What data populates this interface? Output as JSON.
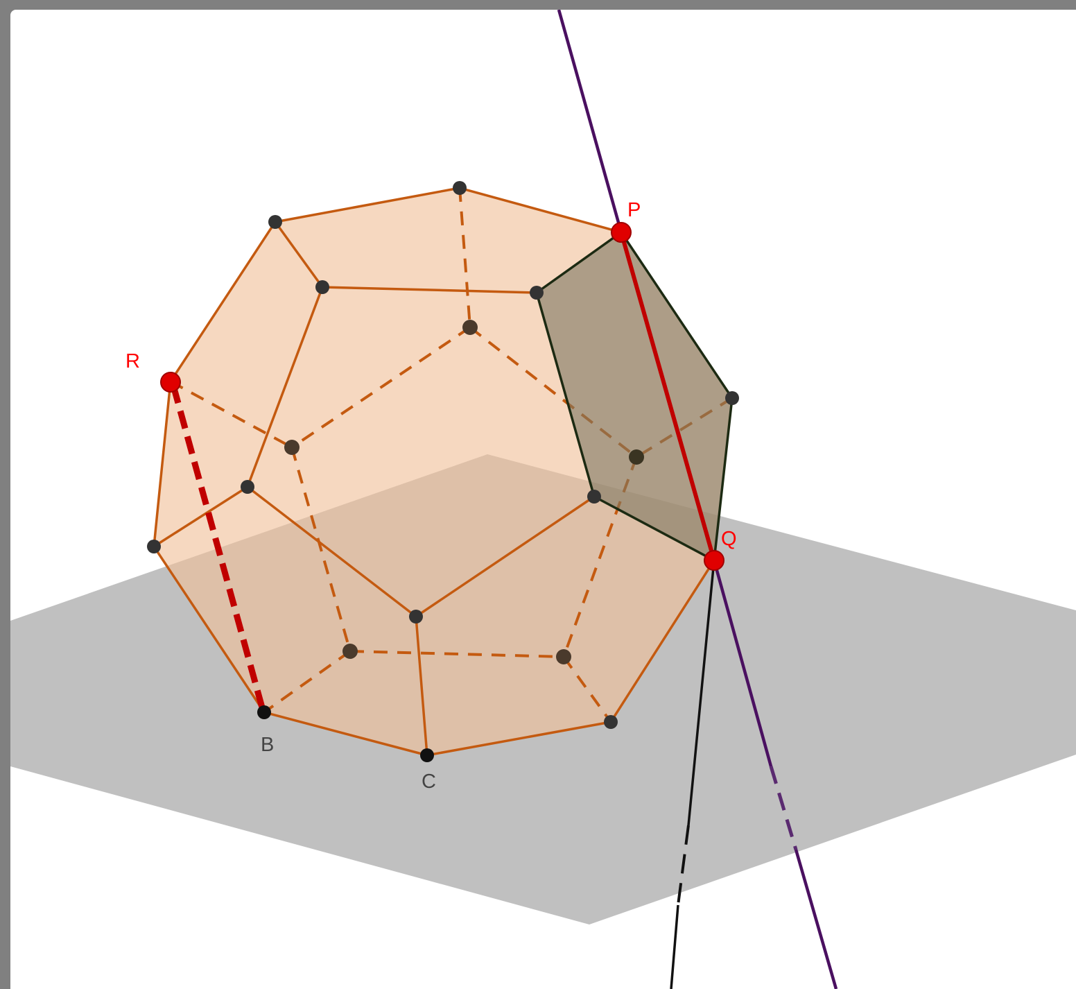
{
  "scene": {
    "point_labels": {
      "P": "P",
      "Q": "Q",
      "R": "R",
      "B": "B",
      "C": "C"
    }
  },
  "colors": {
    "frame": "#808080",
    "plane": "#c0c0c0",
    "polyhedron_fill": "#f0c09a",
    "polyhedron_edge": "#c45a10",
    "highlighted_face": "#7d7760",
    "highlighted_face_edge": "#1c2a12",
    "line_purple": "#4a1060",
    "segment_red": "#c00000",
    "point_red": "#e00000",
    "vertex_dark": "#333333",
    "label_red": "#ff0000",
    "label_gray": "#444444"
  }
}
